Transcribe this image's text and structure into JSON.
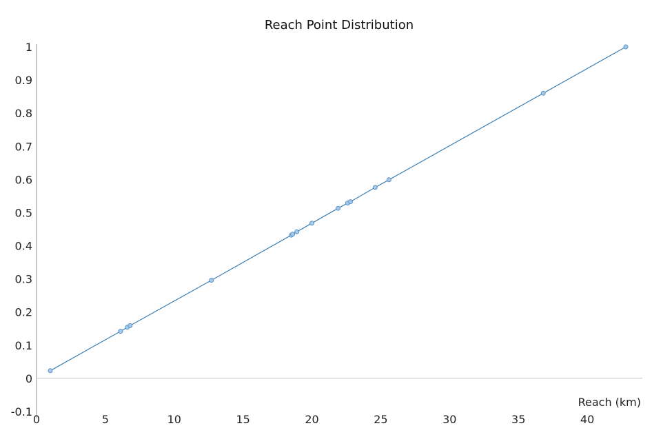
{
  "chart_data": {
    "type": "scatter",
    "title": "Reach Point Distribution",
    "xlabel": "Reach (km)",
    "ylabel": "",
    "xlim": [
      0,
      44
    ],
    "ylim": [
      -0.1,
      1
    ],
    "x_ticks": [
      "0",
      "5",
      "10",
      "15",
      "20",
      "25",
      "30",
      "35",
      "40"
    ],
    "y_ticks": [
      "-0.1",
      "0",
      "0.1",
      "0.2",
      "0.3",
      "0.4",
      "0.5",
      "0.6",
      "0.7",
      "0.8",
      "0.9",
      "1"
    ],
    "grid": false,
    "connected": true,
    "colors": {
      "line": "#3b7fb5",
      "marker_fill": "#a7c9e8",
      "marker_stroke": "#5a93c7",
      "axis": "#c8c8c8"
    },
    "series": [
      {
        "x": [
          1.0,
          6.1,
          6.6,
          6.8,
          12.7,
          18.5,
          18.6,
          18.9,
          20.0,
          21.9,
          22.6,
          22.8,
          24.6,
          25.6,
          36.8,
          42.8
        ],
        "y": [
          0.023,
          0.142,
          0.154,
          0.159,
          0.296,
          0.432,
          0.435,
          0.442,
          0.468,
          0.513,
          0.529,
          0.533,
          0.576,
          0.599,
          0.86,
          1.0
        ]
      }
    ]
  }
}
